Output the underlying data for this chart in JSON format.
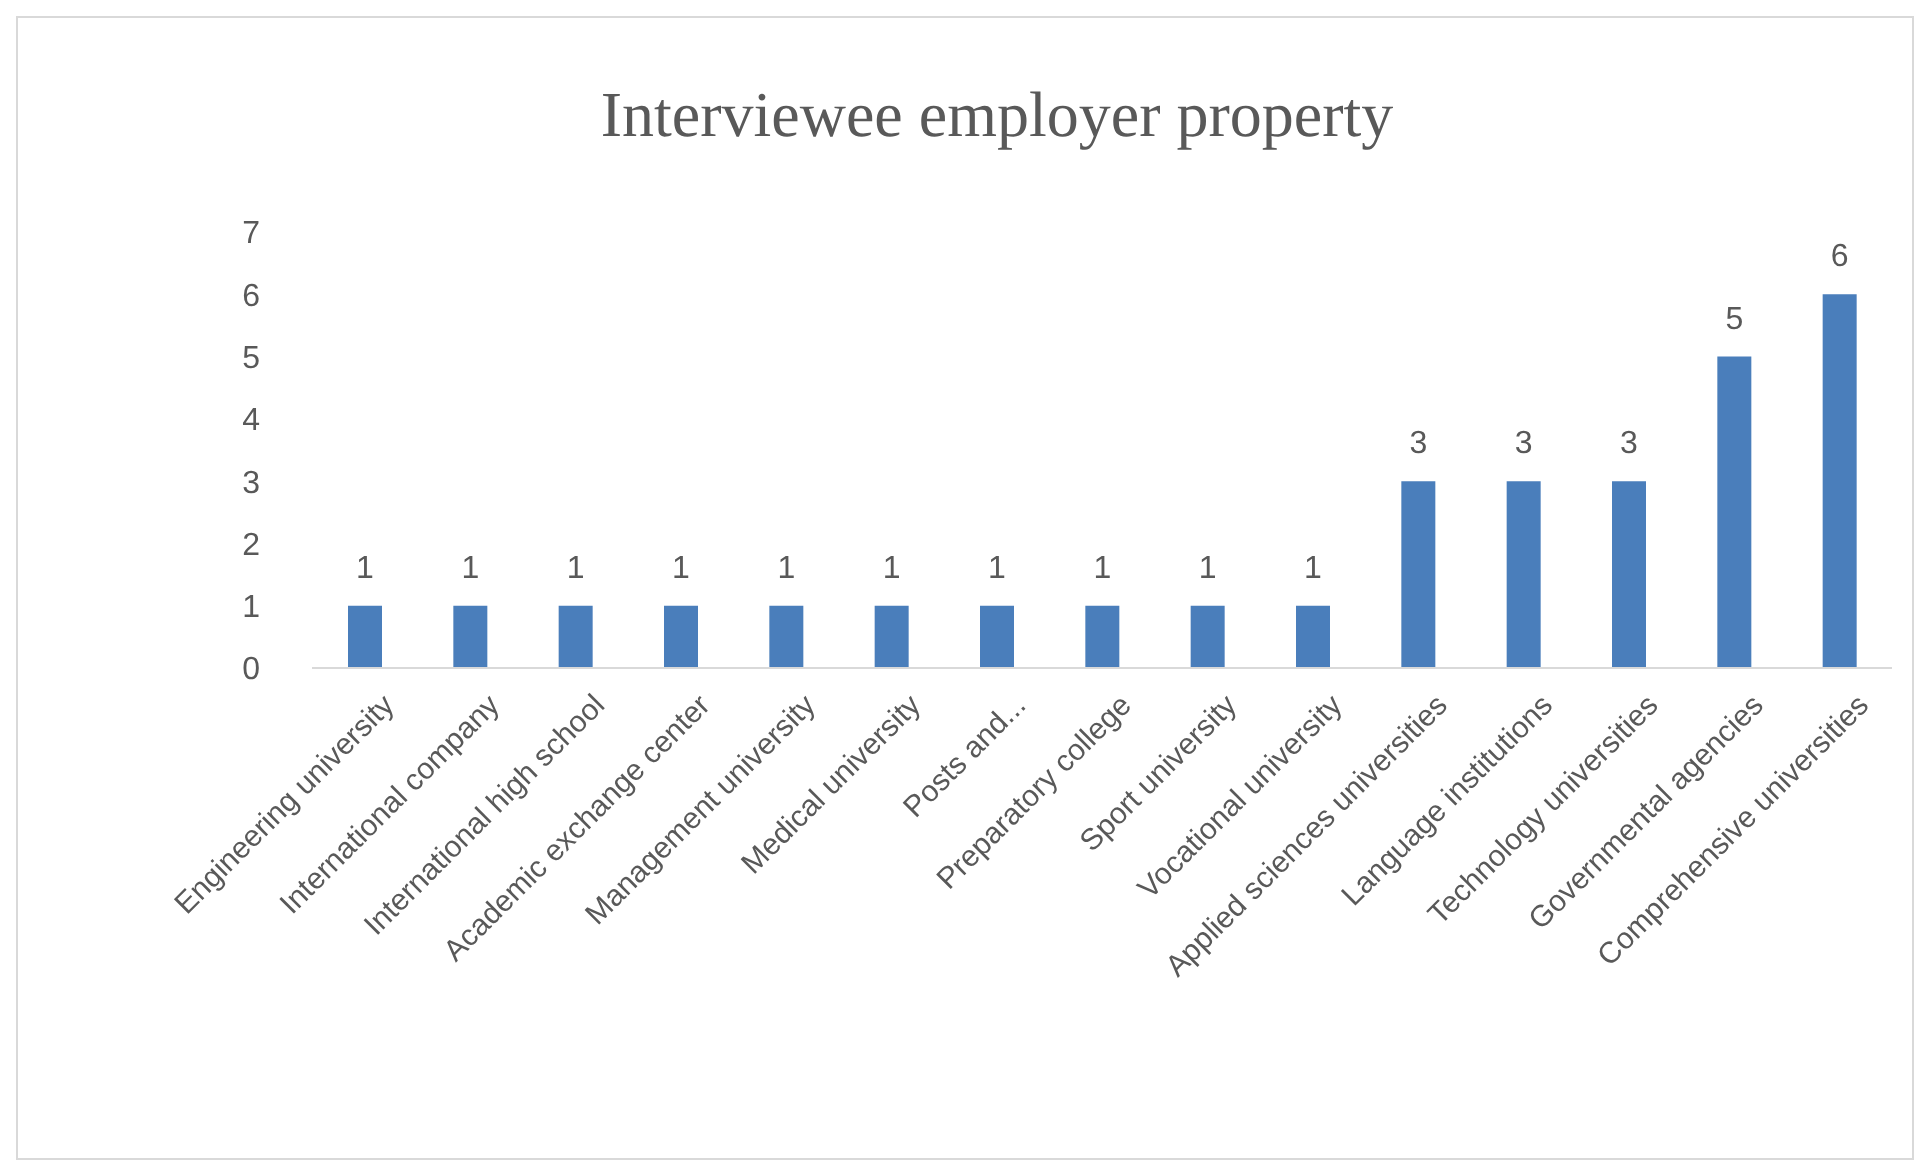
{
  "chart_data": {
    "type": "bar",
    "title": "Interviewee employer property",
    "categories": [
      "Engineering university",
      "International company",
      "International high school",
      "Academic exchange center",
      "Management university",
      "Medical university",
      "Posts and...",
      "Preparatory college",
      "Sport university",
      "Vocational university",
      "Applied sciences universities",
      "Language institutions",
      "Technology universities",
      "Governmental agencies",
      "Comprehensive universities"
    ],
    "values": [
      1,
      1,
      1,
      1,
      1,
      1,
      1,
      1,
      1,
      1,
      3,
      3,
      3,
      5,
      6
    ],
    "color": "#4a7ebb",
    "ylim": [
      0,
      7
    ],
    "yticks": [
      0,
      1,
      2,
      3,
      4,
      5,
      6,
      7
    ],
    "grid": false,
    "data_labels": true
  }
}
